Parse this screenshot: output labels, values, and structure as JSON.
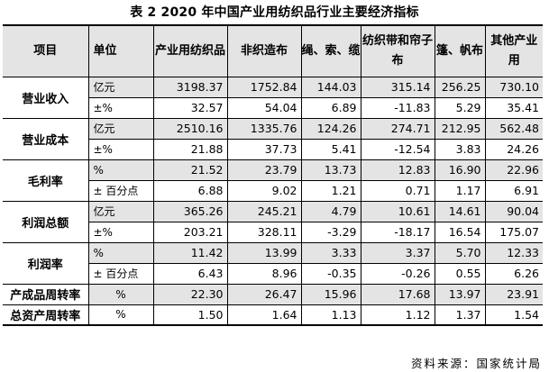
{
  "caption": "表 2    2020 年中国产业用纺织品行业主要经济指标",
  "headers": {
    "item": "项目",
    "unit": "单位",
    "col1": "产业用纺织品",
    "col2": "非织造布",
    "col3": "绳、索、缆",
    "col4": "纺织带和帘子布",
    "col5": "篷、帆布",
    "col6": "其他产业用"
  },
  "rows": [
    {
      "item": "营业收入",
      "span": 2,
      "unit": "亿元",
      "v": [
        "3198.37",
        "1752.84",
        "144.03",
        "315.14",
        "256.25",
        "730.10"
      ]
    },
    {
      "unit": "±%",
      "v": [
        "32.57",
        "54.04",
        "6.89",
        "-11.83",
        "5.29",
        "35.41"
      ]
    },
    {
      "item": "营业成本",
      "span": 2,
      "unit": "亿元",
      "v": [
        "2510.16",
        "1335.76",
        "124.26",
        "274.71",
        "212.95",
        "562.48"
      ]
    },
    {
      "unit": "±%",
      "v": [
        "21.88",
        "37.73",
        "5.41",
        "-12.54",
        "3.83",
        "24.26"
      ]
    },
    {
      "item": "毛利率",
      "span": 2,
      "unit": "%",
      "v": [
        "21.52",
        "23.79",
        "13.73",
        "12.83",
        "16.90",
        "22.96"
      ]
    },
    {
      "unit": "± 百分点",
      "v": [
        "6.88",
        "9.02",
        "1.21",
        "0.71",
        "1.17",
        "6.91"
      ]
    },
    {
      "item": "利润总额",
      "span": 2,
      "unit": "亿元",
      "v": [
        "365.26",
        "245.21",
        "4.79",
        "10.61",
        "14.61",
        "90.04"
      ]
    },
    {
      "unit": "±%",
      "v": [
        "203.21",
        "328.11",
        "-3.29",
        "-18.17",
        "16.54",
        "175.07"
      ]
    },
    {
      "item": "利润率",
      "span": 2,
      "unit": "%",
      "v": [
        "11.42",
        "13.99",
        "3.33",
        "3.37",
        "5.70",
        "12.33"
      ]
    },
    {
      "unit": "± 百分点",
      "v": [
        "6.43",
        "8.96",
        "-0.35",
        "-0.26",
        "0.55",
        "6.26"
      ]
    },
    {
      "item": "产成品周转率",
      "span": 1,
      "unit": "%",
      "v": [
        "22.30",
        "26.47",
        "15.96",
        "17.68",
        "13.97",
        "23.91"
      ]
    },
    {
      "item": "总资产周转率",
      "span": 1,
      "unit": "%",
      "v": [
        "1.50",
        "1.64",
        "1.13",
        "1.12",
        "1.37",
        "1.54"
      ]
    }
  ],
  "source": "资料来源：国家统计局"
}
